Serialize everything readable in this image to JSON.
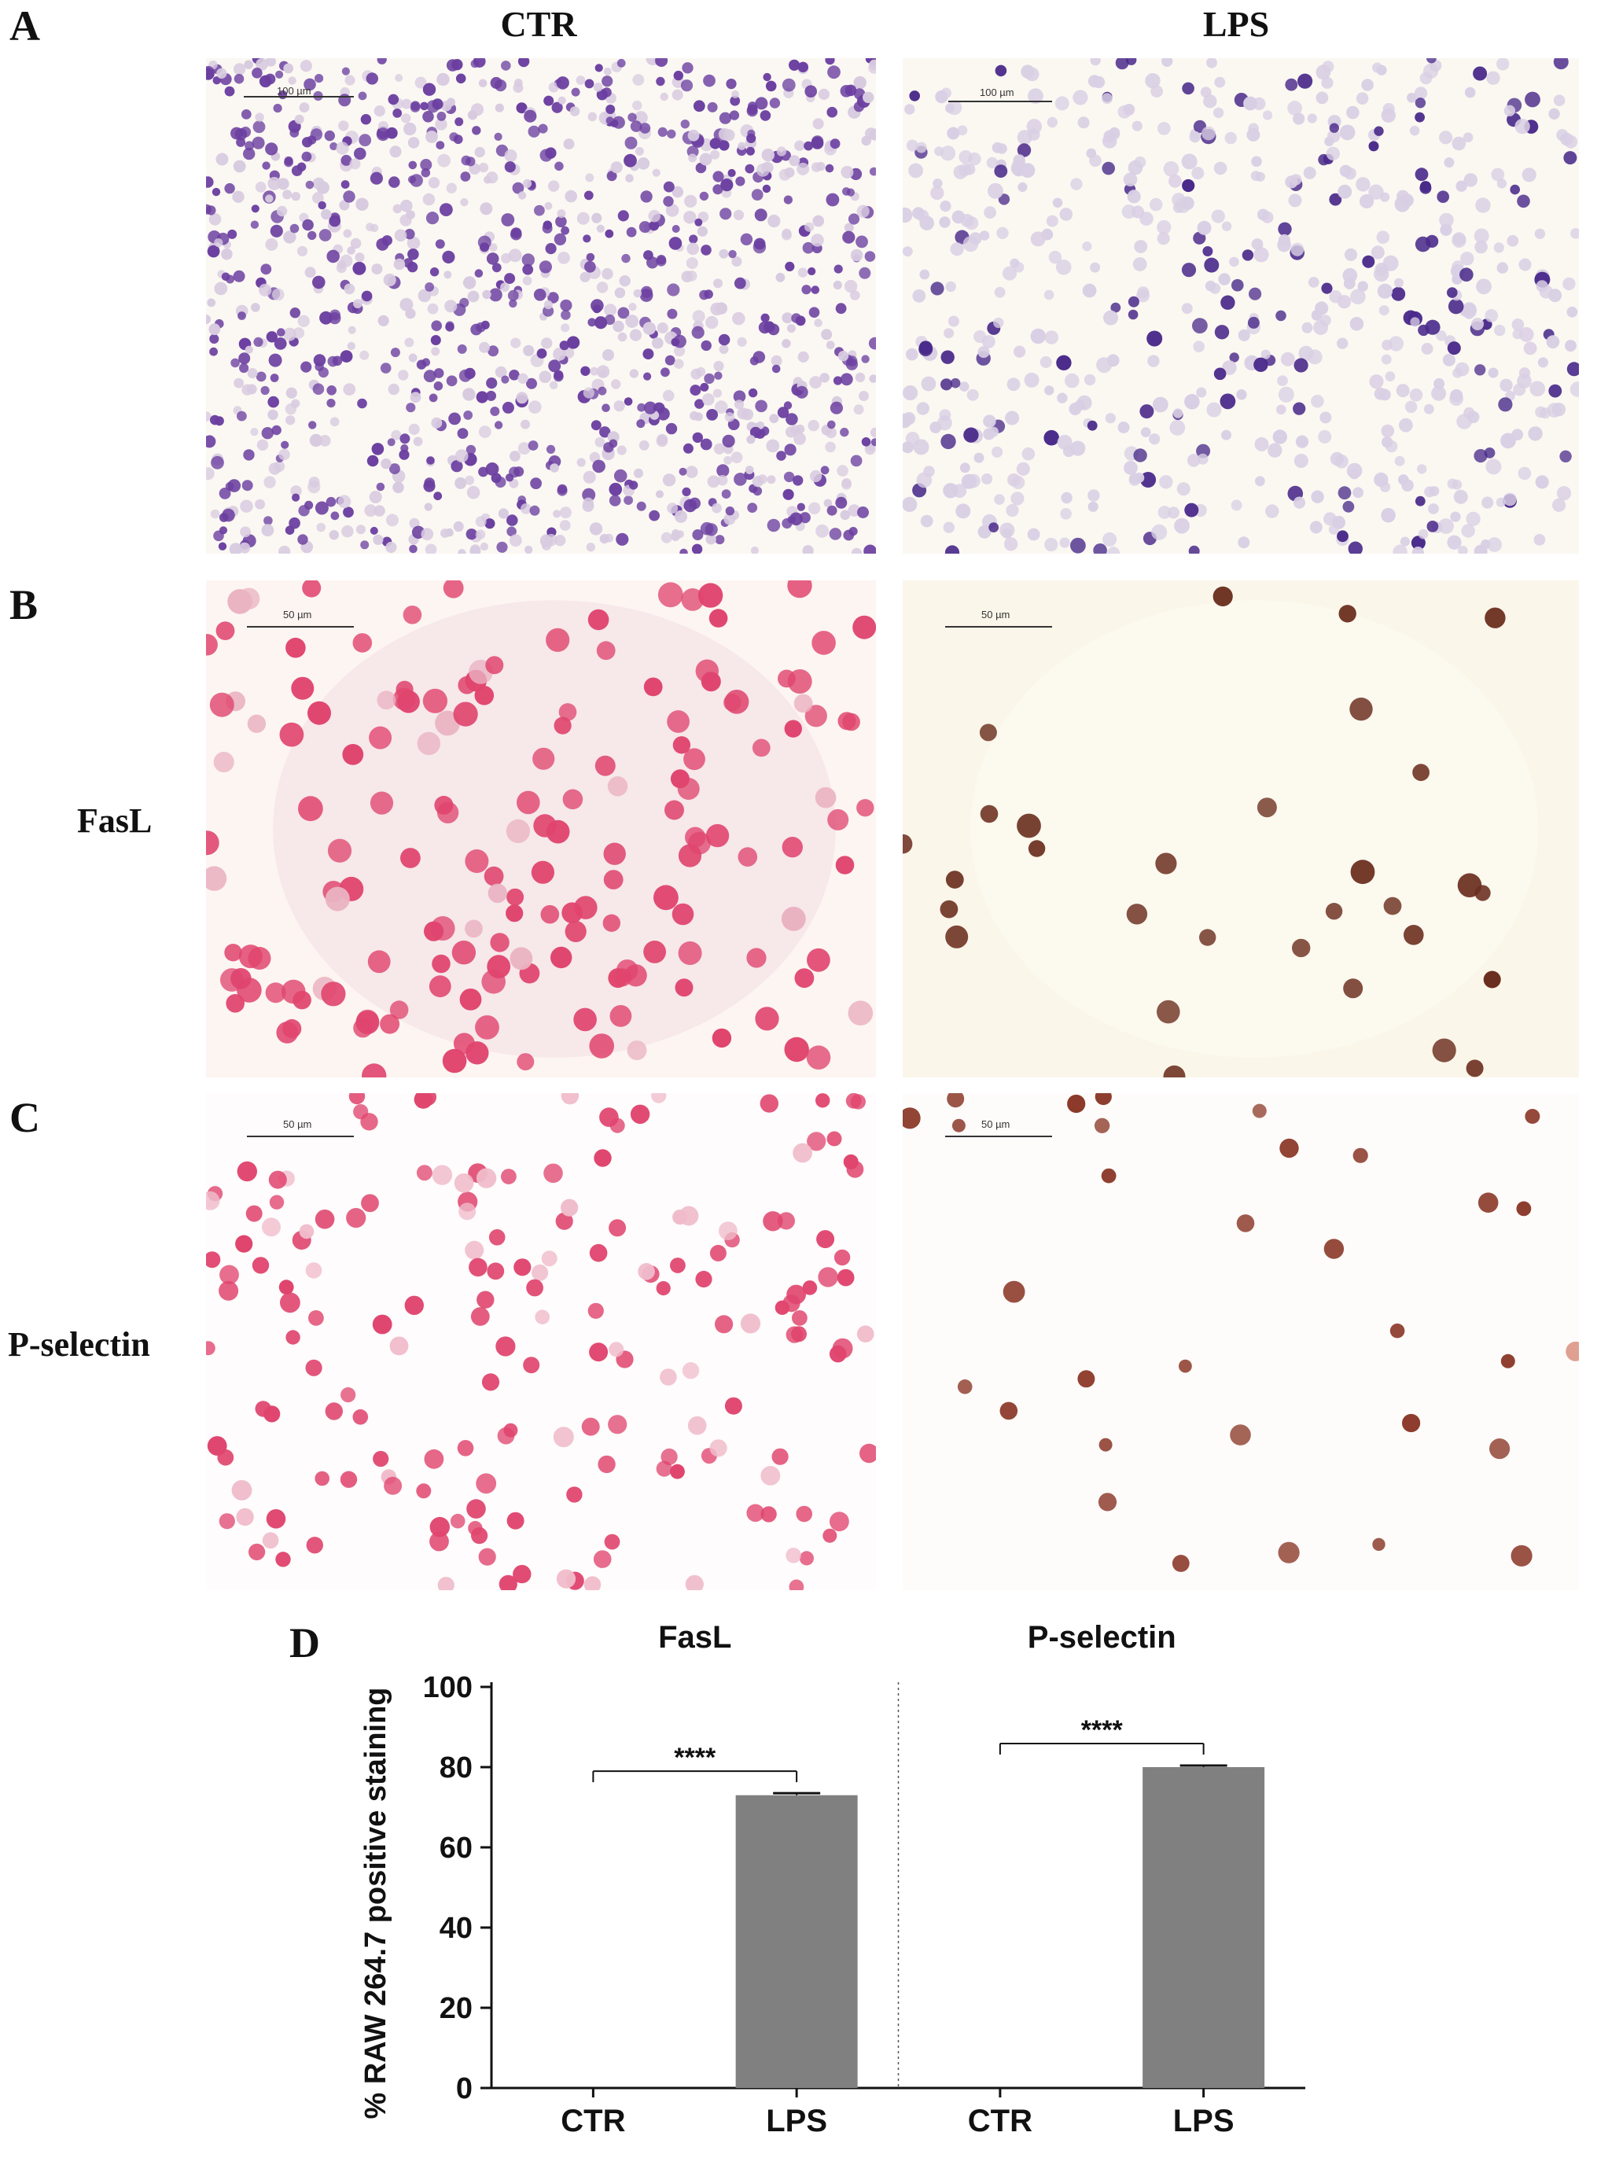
{
  "panels": {
    "a": "A",
    "b": "B",
    "c": "C",
    "d": "D"
  },
  "columns": {
    "ctr": "CTR",
    "lps": "LPS"
  },
  "rows": {
    "fasl": "FasL",
    "pselectin": "P-selectin"
  },
  "scale_bars": {
    "a_ctr": "100 µm",
    "a_lps": "100 µm",
    "b_ctr": "50 µm",
    "b_lps": "50 µm",
    "c_ctr": "50 µm",
    "c_lps": "50 µm"
  },
  "colors": {
    "hematoxylin": "#6b3fa0",
    "hematoxylin_faint": "#d8cbe0",
    "pink_stain": "#e0456e",
    "brown_stain": "#6b2f1f",
    "bar_fill": "#808080"
  },
  "chart_data": {
    "type": "bar",
    "title": "",
    "ylabel": "% RAW 264.7 positive staining",
    "ylim": [
      0,
      100
    ],
    "yticks": [
      0,
      20,
      40,
      60,
      80,
      100
    ],
    "grid": false,
    "groups": [
      {
        "name": "FasL",
        "categories": [
          "CTR",
          "LPS"
        ],
        "values": [
          0,
          73
        ],
        "errors": [
          0,
          0.5
        ],
        "significance": "****"
      },
      {
        "name": "P-selectin",
        "categories": [
          "CTR",
          "LPS"
        ],
        "values": [
          0,
          80
        ],
        "errors": [
          0,
          0.4
        ],
        "significance": "****"
      }
    ]
  }
}
